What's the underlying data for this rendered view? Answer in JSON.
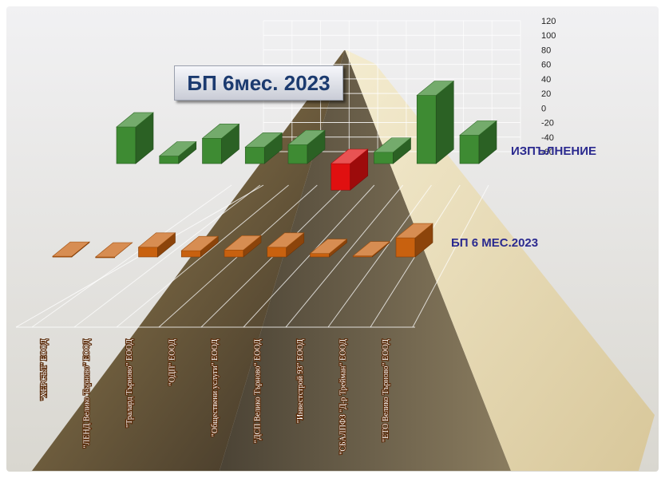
{
  "chart_data": {
    "type": "bar",
    "title": "БП 6мес. 2023",
    "categories": [
      "\"ХЕРСЪЛ\" ЕООД",
      "\"ЛЕНД Велико Търново\" ЕООД",
      "\"Тралард Търново\" ЕООД",
      "\"ОДП\" ЕООД",
      "\"Обществени услуги\" ЕООД",
      "\"ДСП Велико Търново\" ЕООД",
      "\"Инвестстрой 93\" ЕООД",
      "\"СБАЛПФЗ \"Д-р Трейман\" ЕООД",
      "\"ЕТО Велико Търново\" ЕООД"
    ],
    "series": [
      {
        "name": "ИЗПЪЛНЕНИЕ",
        "values": [
          58,
          12,
          40,
          26,
          30,
          -42,
          18,
          108,
          45
        ],
        "color": "#3e8b33"
      },
      {
        "name": "БП 6 МЕС.2023",
        "values": [
          2,
          0,
          28,
          18,
          20,
          28,
          10,
          3,
          55
        ],
        "color": "#c8610f"
      }
    ],
    "zlim": [
      -60,
      120
    ],
    "z_ticks": [
      "120",
      "100",
      "80",
      "60",
      "40",
      "20",
      "0",
      "-20",
      "-40",
      "-60"
    ],
    "highlight": {
      "series": 0,
      "index": 5,
      "color": "#e01010"
    },
    "grid": true
  }
}
